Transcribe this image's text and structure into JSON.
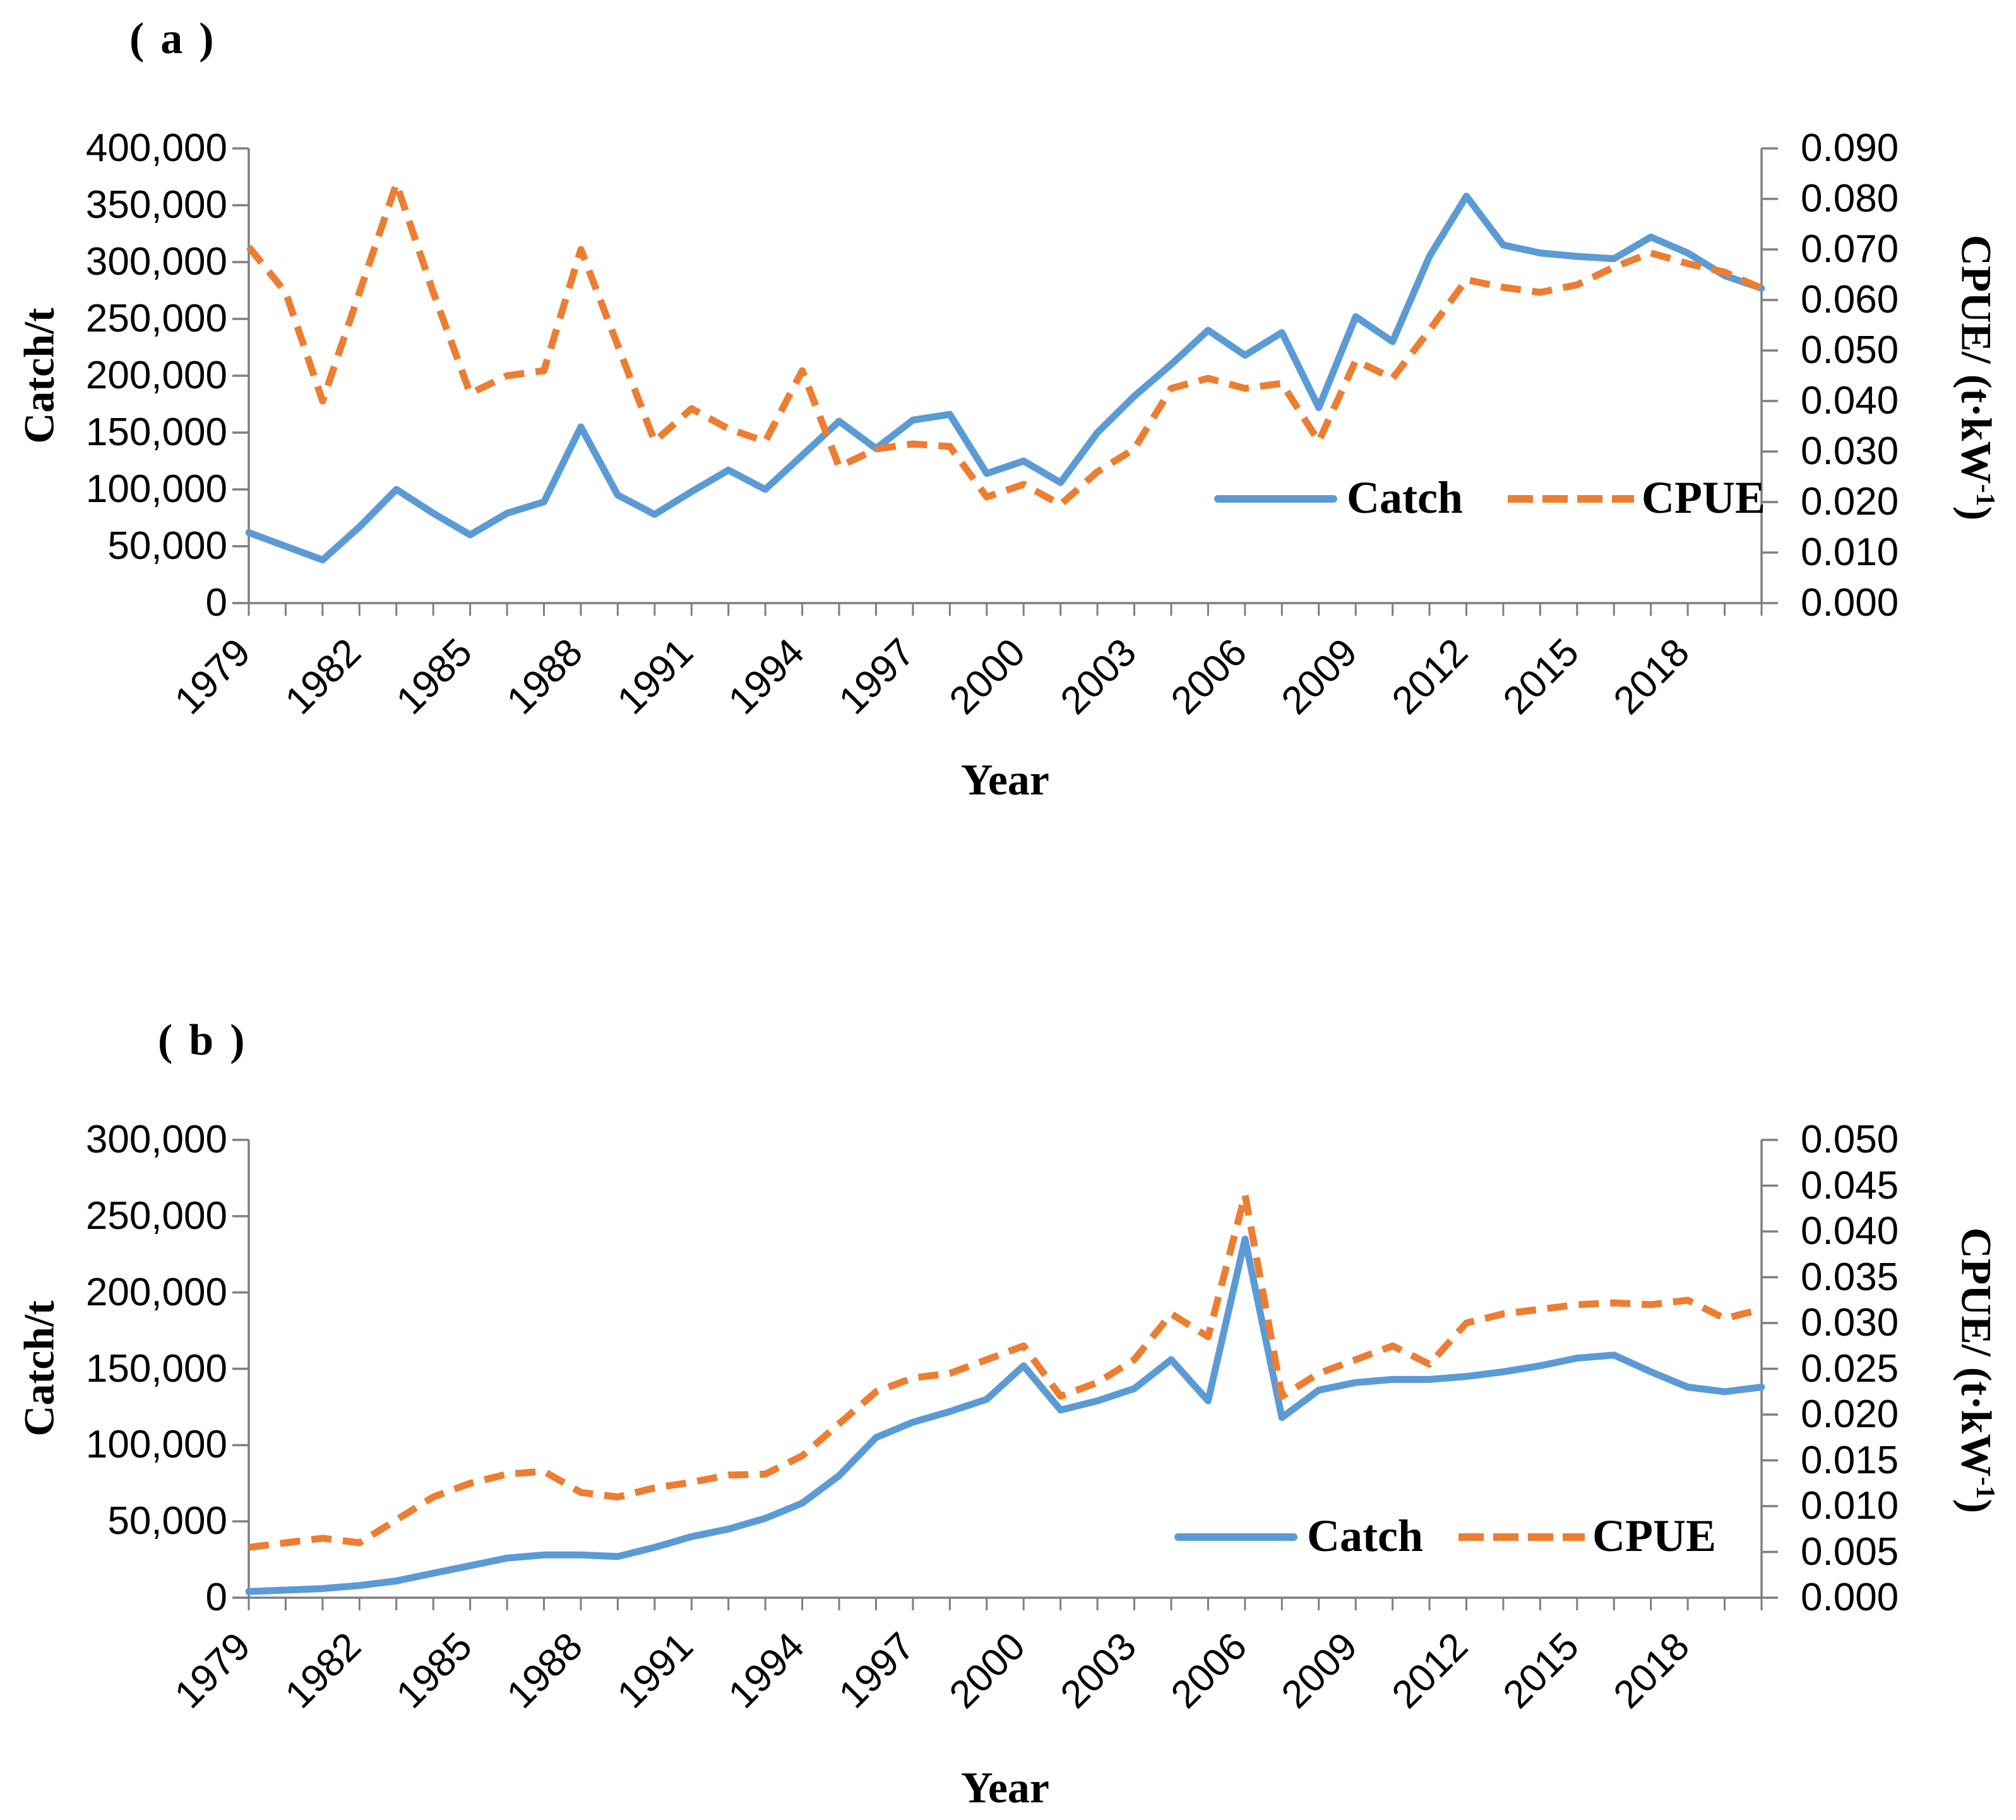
{
  "page": {
    "background": "#ffffff"
  },
  "colors": {
    "catch_line": "#5B9BD5",
    "cpue_line": "#ED7D31",
    "axis": "#7F7F7F",
    "text": "#000000"
  },
  "chart_data": [
    {
      "id": "a",
      "type": "line",
      "title": "(a)",
      "x_label": "Year",
      "x_tick_labels": [
        "1979",
        "1982",
        "1985",
        "1988",
        "1991",
        "1994",
        "1997",
        "2000",
        "2003",
        "2006",
        "2009",
        "2012",
        "2015",
        "2018"
      ],
      "years": [
        1979,
        1980,
        1981,
        1982,
        1983,
        1984,
        1985,
        1986,
        1987,
        1988,
        1989,
        1990,
        1991,
        1992,
        1993,
        1994,
        1995,
        1996,
        1997,
        1998,
        1999,
        2000,
        2001,
        2002,
        2003,
        2004,
        2005,
        2006,
        2007,
        2008,
        2009,
        2010,
        2011,
        2012,
        2013,
        2014,
        2015,
        2016,
        2017,
        2018,
        2019,
        2020
      ],
      "left_axis": {
        "label": "Catch/t",
        "min": 0,
        "max": 400000,
        "tick_labels": [
          "400,000",
          "350,000",
          "300,000",
          "250,000",
          "200,000",
          "150,000",
          "100,000",
          "50,000",
          "0"
        ]
      },
      "right_axis": {
        "label_prefix": "CPUE/ (t·kW",
        "label_sup": "-1",
        "label_suffix": ")",
        "min": 0,
        "max": 0.09,
        "tick_labels": [
          "0.090",
          "0.080",
          "0.070",
          "0.060",
          "0.050",
          "0.040",
          "0.030",
          "0.020",
          "0.010",
          "0.000"
        ]
      },
      "legend": [
        {
          "name": "Catch",
          "style": "solid"
        },
        {
          "name": "CPUE",
          "style": "dashed"
        }
      ],
      "series": [
        {
          "name": "Catch",
          "axis": "left",
          "values": [
            62000,
            50000,
            38000,
            67000,
            100000,
            79000,
            60000,
            79000,
            89000,
            155000,
            95000,
            78000,
            98000,
            117000,
            100000,
            130000,
            160000,
            136000,
            161000,
            166000,
            114000,
            125000,
            106000,
            150000,
            182000,
            210000,
            240000,
            218000,
            238000,
            172000,
            252000,
            230000,
            305000,
            358000,
            315000,
            308000,
            305000,
            303000,
            322000,
            308000,
            288000,
            277000
          ]
        },
        {
          "name": "CPUE",
          "axis": "right",
          "values": [
            0.0705,
            0.0615,
            0.04,
            0.0615,
            0.083,
            0.0615,
            0.0415,
            0.045,
            0.046,
            0.07,
            0.051,
            0.032,
            0.0385,
            0.0345,
            0.032,
            0.046,
            0.027,
            0.0305,
            0.0315,
            0.031,
            0.021,
            0.0235,
            0.0195,
            0.026,
            0.0305,
            0.0425,
            0.0445,
            0.0425,
            0.0435,
            0.032,
            0.048,
            0.0445,
            0.054,
            0.064,
            0.0625,
            0.0615,
            0.063,
            0.0665,
            0.0693,
            0.0672,
            0.0655,
            0.0623
          ]
        }
      ]
    },
    {
      "id": "b",
      "type": "line",
      "title": "(b)",
      "x_label": "Year",
      "x_tick_labels": [
        "1979",
        "1982",
        "1985",
        "1988",
        "1991",
        "1994",
        "1997",
        "2000",
        "2003",
        "2006",
        "2009",
        "2012",
        "2015",
        "2018"
      ],
      "years": [
        1979,
        1980,
        1981,
        1982,
        1983,
        1984,
        1985,
        1986,
        1987,
        1988,
        1989,
        1990,
        1991,
        1992,
        1993,
        1994,
        1995,
        1996,
        1997,
        1998,
        1999,
        2000,
        2001,
        2002,
        2003,
        2004,
        2005,
        2006,
        2007,
        2008,
        2009,
        2010,
        2011,
        2012,
        2013,
        2014,
        2015,
        2016,
        2017,
        2018,
        2019,
        2020
      ],
      "left_axis": {
        "label": "Catch/t",
        "min": 0,
        "max": 300000,
        "tick_labels": [
          "300,000",
          "250,000",
          "200,000",
          "150,000",
          "100,000",
          "50,000",
          "0"
        ]
      },
      "right_axis": {
        "label_prefix": "CPUE/ (t·kW",
        "label_sup": "-1",
        "label_suffix": ")",
        "min": 0,
        "max": 0.05,
        "tick_labels": [
          "0.050",
          "0.045",
          "0.040",
          "0.035",
          "0.030",
          "0.025",
          "0.020",
          "0.015",
          "0.010",
          "0.005",
          "0.000"
        ]
      },
      "legend": [
        {
          "name": "Catch",
          "style": "solid"
        },
        {
          "name": "CPUE",
          "style": "dashed"
        }
      ],
      "series": [
        {
          "name": "Catch",
          "axis": "left",
          "values": [
            4000,
            5000,
            6000,
            8000,
            11000,
            16000,
            21000,
            26000,
            28000,
            28000,
            27000,
            33000,
            40000,
            45000,
            52000,
            62000,
            80000,
            105000,
            115000,
            122000,
            130000,
            152000,
            123000,
            129000,
            137000,
            156000,
            129000,
            235000,
            118000,
            136000,
            141000,
            143000,
            143000,
            145000,
            148000,
            152000,
            157000,
            159000,
            148000,
            138000,
            135000,
            138000
          ]
        },
        {
          "name": "CPUE",
          "axis": "right",
          "values": [
            0.0055,
            0.006,
            0.0065,
            0.006,
            0.0085,
            0.011,
            0.0125,
            0.0135,
            0.0138,
            0.0115,
            0.011,
            0.012,
            0.0126,
            0.0134,
            0.0135,
            0.0155,
            0.019,
            0.0225,
            0.024,
            0.0245,
            0.026,
            0.0275,
            0.022,
            0.0235,
            0.026,
            0.031,
            0.0285,
            0.044,
            0.022,
            0.0245,
            0.026,
            0.0275,
            0.0255,
            0.03,
            0.031,
            0.0315,
            0.032,
            0.0322,
            0.032,
            0.0325,
            0.0305,
            0.0315
          ]
        }
      ]
    }
  ]
}
